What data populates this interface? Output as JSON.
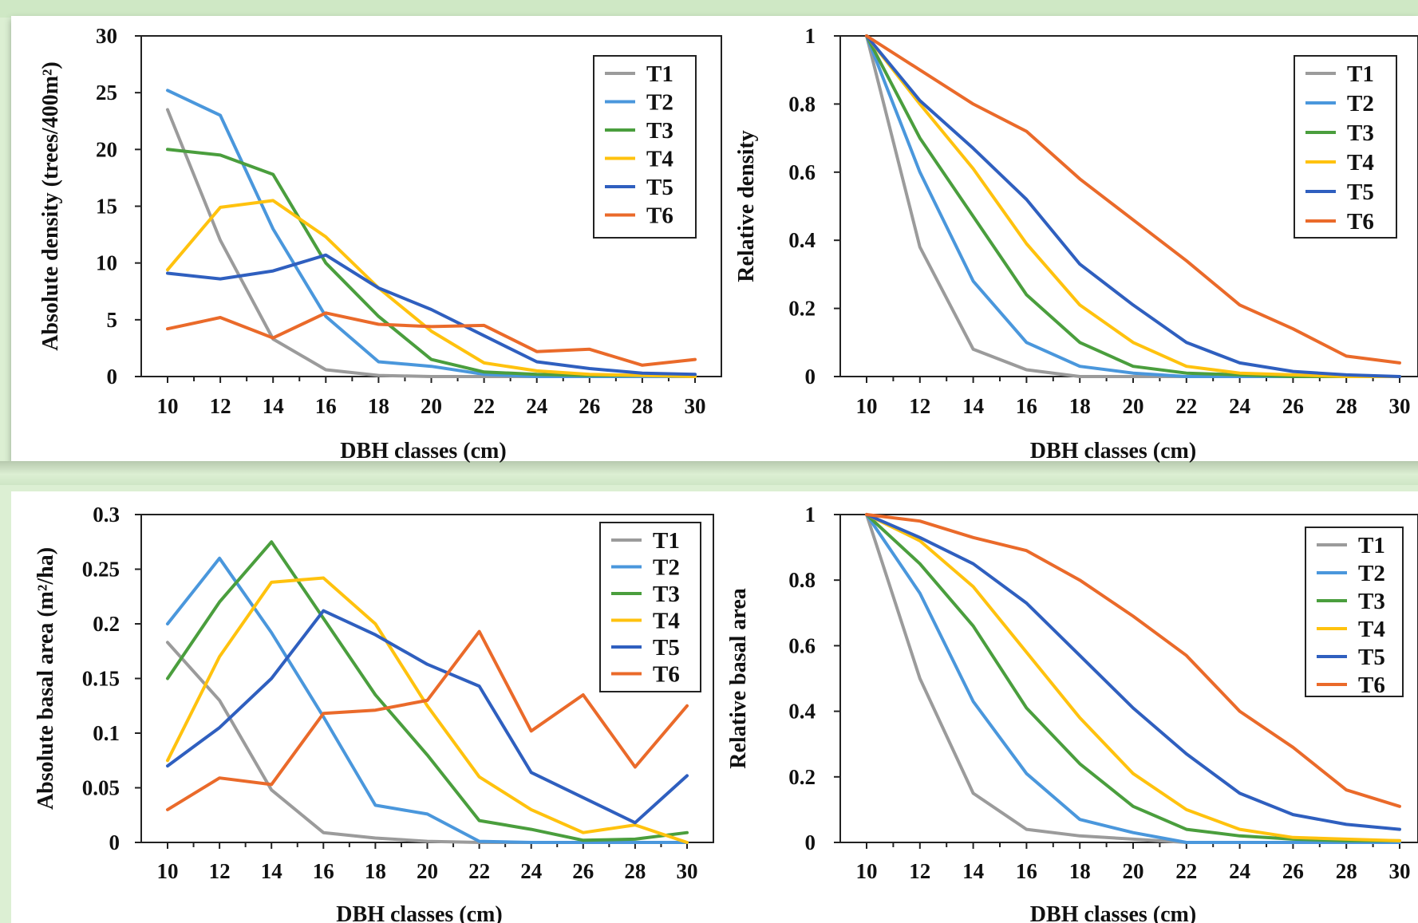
{
  "colors": {
    "T1": "#9b9b9b",
    "T2": "#4a97dc",
    "T3": "#4a9e3d",
    "T4": "#ffc20e",
    "T5": "#2f5fbf",
    "T6": "#ea6a2a"
  },
  "legend": [
    "T1",
    "T2",
    "T3",
    "T4",
    "T5",
    "T6"
  ],
  "chart_data": [
    {
      "type": "line",
      "xlabel": "DBH classes (cm)",
      "ylabel": "Absolute density (trees/400m²)",
      "ylim": [
        0,
        30
      ],
      "yticks": [
        0,
        5,
        10,
        15,
        20,
        25,
        30
      ],
      "ytick_labels": [
        "0",
        "5",
        "10",
        "15",
        "20",
        "25",
        "30"
      ],
      "x": [
        10,
        12,
        14,
        16,
        18,
        20,
        22,
        24,
        26,
        28,
        30
      ],
      "legend_position": "top-right",
      "series": [
        {
          "name": "T1",
          "values": [
            23.5,
            12,
            3.3,
            0.6,
            0.1,
            0,
            0,
            0,
            0,
            0,
            0
          ]
        },
        {
          "name": "T2",
          "values": [
            25.2,
            23,
            13,
            5.3,
            1.3,
            0.9,
            0.2,
            0,
            0,
            0,
            0
          ]
        },
        {
          "name": "T3",
          "values": [
            20,
            19.5,
            17.8,
            10,
            5.3,
            1.5,
            0.4,
            0.2,
            0.1,
            0.1,
            0.1
          ]
        },
        {
          "name": "T4",
          "values": [
            9.4,
            14.9,
            15.5,
            12.3,
            7.8,
            4,
            1.2,
            0.5,
            0.2,
            0.1,
            0
          ]
        },
        {
          "name": "T5",
          "values": [
            9.1,
            8.6,
            9.3,
            10.7,
            7.8,
            5.9,
            3.6,
            1.3,
            0.7,
            0.3,
            0.2
          ]
        },
        {
          "name": "T6",
          "values": [
            4.2,
            5.2,
            3.4,
            5.6,
            4.6,
            4.4,
            4.5,
            2.2,
            2.4,
            1.0,
            1.5
          ]
        }
      ]
    },
    {
      "type": "line",
      "xlabel": "DBH classes (cm)",
      "ylabel": "Relative density",
      "ylim": [
        0,
        1
      ],
      "yticks": [
        0,
        0.2,
        0.4,
        0.6,
        0.8,
        1
      ],
      "ytick_labels": [
        "0",
        "0.2",
        "0.4",
        "0.6",
        "0.8",
        "1"
      ],
      "x": [
        10,
        12,
        14,
        16,
        18,
        20,
        22,
        24,
        26,
        28,
        30
      ],
      "legend_position": "top-right",
      "series": [
        {
          "name": "T1",
          "values": [
            1,
            0.38,
            0.08,
            0.02,
            0,
            0,
            0,
            0,
            0,
            0,
            0
          ]
        },
        {
          "name": "T2",
          "values": [
            1,
            0.6,
            0.28,
            0.1,
            0.03,
            0.01,
            0,
            0,
            0,
            0,
            0
          ]
        },
        {
          "name": "T3",
          "values": [
            1,
            0.7,
            0.47,
            0.24,
            0.1,
            0.03,
            0.01,
            0.005,
            0,
            0,
            0
          ]
        },
        {
          "name": "T4",
          "values": [
            1,
            0.8,
            0.61,
            0.39,
            0.21,
            0.1,
            0.03,
            0.01,
            0.005,
            0,
            0
          ]
        },
        {
          "name": "T5",
          "values": [
            1,
            0.81,
            0.67,
            0.52,
            0.33,
            0.21,
            0.1,
            0.04,
            0.015,
            0.005,
            0
          ]
        },
        {
          "name": "T6",
          "values": [
            1,
            0.9,
            0.8,
            0.72,
            0.58,
            0.46,
            0.34,
            0.21,
            0.14,
            0.06,
            0.04
          ]
        }
      ]
    },
    {
      "type": "line",
      "xlabel": "DBH classes (cm)",
      "ylabel": "Absolute basal area (m²/ha)",
      "ylim": [
        0,
        0.3
      ],
      "yticks": [
        0,
        0.05,
        0.1,
        0.15,
        0.2,
        0.25,
        0.3
      ],
      "ytick_labels": [
        "0",
        "0.05",
        "0.1",
        "0.15",
        "0.2",
        "0.25",
        "0.3"
      ],
      "x": [
        10,
        12,
        14,
        16,
        18,
        20,
        22,
        24,
        26,
        28,
        30
      ],
      "legend_position": "top-right",
      "series": [
        {
          "name": "T1",
          "values": [
            0.183,
            0.13,
            0.048,
            0.009,
            0.004,
            0.001,
            0,
            0,
            0,
            0,
            0
          ]
        },
        {
          "name": "T2",
          "values": [
            0.2,
            0.26,
            0.192,
            0.115,
            0.034,
            0.026,
            0.001,
            0,
            0,
            0,
            0
          ]
        },
        {
          "name": "T3",
          "values": [
            0.15,
            0.22,
            0.275,
            0.205,
            0.135,
            0.08,
            0.02,
            0.012,
            0.002,
            0.003,
            0.009
          ]
        },
        {
          "name": "T4",
          "values": [
            0.075,
            0.17,
            0.238,
            0.242,
            0.2,
            0.125,
            0.06,
            0.03,
            0.009,
            0.016,
            0
          ]
        },
        {
          "name": "T5",
          "values": [
            0.07,
            0.105,
            0.15,
            0.212,
            0.19,
            0.163,
            0.143,
            0.064,
            0.041,
            0.018,
            0.061
          ]
        },
        {
          "name": "T6",
          "values": [
            0.03,
            0.059,
            0.053,
            0.118,
            0.121,
            0.13,
            0.193,
            0.102,
            0.135,
            0.069,
            0.125
          ]
        }
      ]
    },
    {
      "type": "line",
      "xlabel": "DBH classes (cm)",
      "ylabel": "Relative basal area",
      "ylim": [
        0,
        1
      ],
      "yticks": [
        0,
        0.2,
        0.4,
        0.6,
        0.8,
        1
      ],
      "ytick_labels": [
        "0",
        "0.2",
        "0.4",
        "0.6",
        "0.8",
        "1"
      ],
      "x": [
        10,
        12,
        14,
        16,
        18,
        20,
        22,
        24,
        26,
        28,
        30
      ],
      "legend_position": "top-right",
      "series": [
        {
          "name": "T1",
          "values": [
            1,
            0.5,
            0.15,
            0.04,
            0.02,
            0.01,
            0,
            0,
            0,
            0,
            0
          ]
        },
        {
          "name": "T2",
          "values": [
            1,
            0.76,
            0.43,
            0.21,
            0.07,
            0.03,
            0,
            0,
            0,
            0,
            0
          ]
        },
        {
          "name": "T3",
          "values": [
            1,
            0.85,
            0.66,
            0.41,
            0.24,
            0.11,
            0.04,
            0.02,
            0.01,
            0.005,
            0.005
          ]
        },
        {
          "name": "T4",
          "values": [
            1,
            0.92,
            0.78,
            0.58,
            0.38,
            0.21,
            0.1,
            0.04,
            0.015,
            0.01,
            0.005
          ]
        },
        {
          "name": "T5",
          "values": [
            1,
            0.93,
            0.85,
            0.73,
            0.57,
            0.41,
            0.27,
            0.15,
            0.085,
            0.055,
            0.04
          ]
        },
        {
          "name": "T6",
          "values": [
            1,
            0.98,
            0.93,
            0.89,
            0.8,
            0.69,
            0.57,
            0.4,
            0.29,
            0.16,
            0.11
          ]
        }
      ]
    }
  ]
}
